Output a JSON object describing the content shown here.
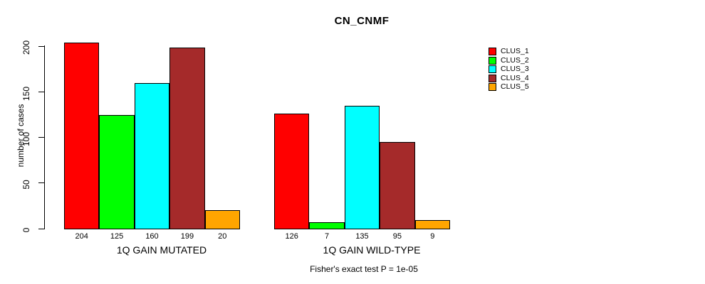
{
  "title": "CN_CNMF",
  "y_axis": {
    "label": "number of cases"
  },
  "footer": "Fisher's exact test P = 1e-05",
  "legend": {
    "items": [
      {
        "label": "CLUS_1",
        "color": "#ff0000"
      },
      {
        "label": "CLUS_2",
        "color": "#00ff00"
      },
      {
        "label": "CLUS_3",
        "color": "#00ffff"
      },
      {
        "label": "CLUS_4",
        "color": "#a52a2a"
      },
      {
        "label": "CLUS_5",
        "color": "#ffa500"
      }
    ]
  },
  "chart_data": {
    "type": "bar",
    "title": "CN_CNMF",
    "xlabel": "",
    "ylabel": "number of cases",
    "ylim": [
      0,
      204
    ],
    "yticks": [
      0,
      50,
      100,
      150,
      200
    ],
    "grid": false,
    "legend_position": "right",
    "categories": [
      "1Q GAIN MUTATED",
      "1Q GAIN WILD-TYPE"
    ],
    "series": [
      {
        "name": "CLUS_1",
        "color": "#ff0000",
        "values": [
          204,
          126
        ]
      },
      {
        "name": "CLUS_2",
        "color": "#00ff00",
        "values": [
          125,
          7
        ]
      },
      {
        "name": "CLUS_3",
        "color": "#00ffff",
        "values": [
          160,
          135
        ]
      },
      {
        "name": "CLUS_4",
        "color": "#a52a2a",
        "values": [
          199,
          95
        ]
      },
      {
        "name": "CLUS_5",
        "color": "#ffa500",
        "values": [
          20,
          9
        ]
      }
    ],
    "bar_value_labels": [
      [
        204,
        125,
        160,
        199,
        20
      ],
      [
        126,
        7,
        135,
        95,
        9
      ]
    ],
    "annotation": "Fisher's exact test P = 1e-05"
  }
}
